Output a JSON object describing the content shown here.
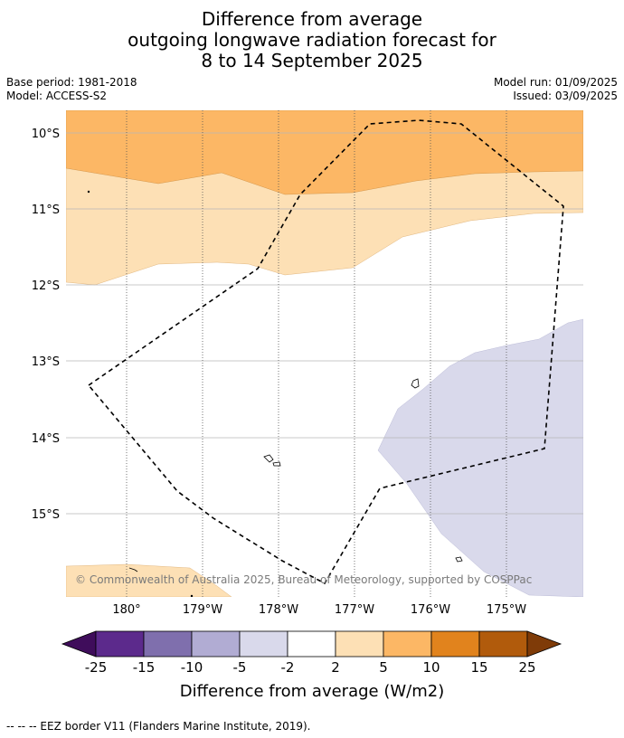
{
  "title": {
    "line1": "Difference from average",
    "line2": "outgoing longwave radiation forecast for",
    "line3": "8 to 14 September 2025"
  },
  "meta": {
    "base_period": "Base period: 1981-2018",
    "model": "Model: ACCESS-S2",
    "model_run": "Model run: 01/09/2025",
    "issued": "Issued: 03/09/2025"
  },
  "map": {
    "lat_labels": [
      "10°S",
      "11°S",
      "12°S",
      "13°S",
      "14°S",
      "15°S"
    ],
    "lon_labels": [
      "180°",
      "179°W",
      "178°W",
      "177°W",
      "176°W",
      "175°W"
    ],
    "copyright": "© Commonwealth of Australia 2025, Bureau of Meteorology, supported by COSPPac",
    "eez_label": "EEZ border",
    "colors": {
      "light_orange": "#fde0b5",
      "orange": "#fcb765",
      "light_purple": "#d9d9eb"
    }
  },
  "colorbar": {
    "label": "Difference from average (W/m2)",
    "ticks": [
      "-25",
      "-15",
      "-10",
      "-5",
      "-2",
      "2",
      "5",
      "10",
      "15",
      "25"
    ],
    "colors": [
      "#3f0d5b",
      "#5c2a8c",
      "#7f6fad",
      "#b1acd3",
      "#d9d9eb",
      "#ffffff",
      "#fde0b5",
      "#fcb765",
      "#e1831d",
      "#b15b0c",
      "#7f3b08"
    ]
  },
  "footnote": "--  --  -- EEZ border V11 (Flanders Marine Institute, 2019)."
}
